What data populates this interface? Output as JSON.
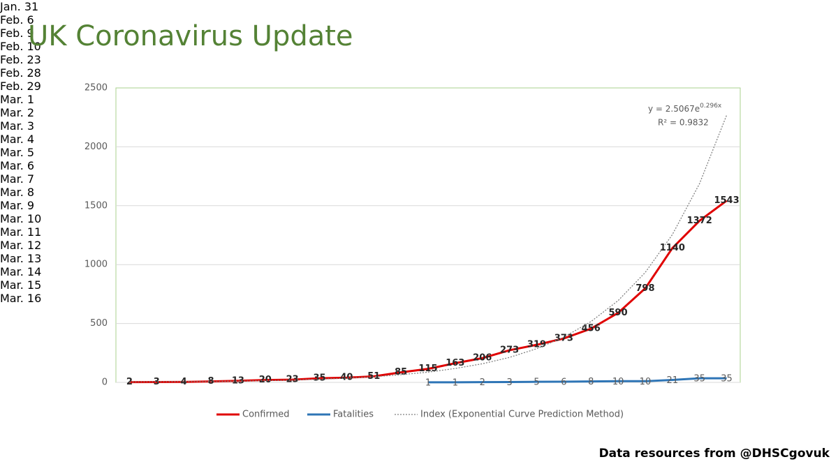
{
  "chart_data": {
    "type": "line",
    "title": "UK Coronavirus Update",
    "source": "Data resources from @DHSCgovuk",
    "equation_base": "y = 2.5067e",
    "equation_exponent": "0.296x",
    "r_squared": "R² = 0.9832",
    "categories": [
      "Jan. 31",
      "Feb. 6",
      "Feb. 9",
      "Feb. 10",
      "Feb. 23",
      "Feb. 28",
      "Feb. 29",
      "Mar. 1",
      "Mar. 2",
      "Mar. 3",
      "Mar. 4",
      "Mar. 5",
      "Mar. 6",
      "Mar. 7",
      "Mar. 8",
      "Mar. 9",
      "Mar. 10",
      "Mar. 11",
      "Mar. 12",
      "Mar. 13",
      "Mar. 14",
      "Mar. 15",
      "Mar. 16"
    ],
    "series": [
      {
        "name": "Confirmed",
        "color": "#e00000",
        "line_style": "solid",
        "data_labels": true,
        "values": [
          2,
          3,
          4,
          8,
          13,
          20,
          23,
          35,
          40,
          51,
          85,
          115,
          163,
          206,
          273,
          319,
          373,
          456,
          590,
          798,
          1140,
          1372,
          1543
        ]
      },
      {
        "name": "Fatalities",
        "color": "#2e75b6",
        "line_style": "solid",
        "data_labels": true,
        "values": [
          null,
          null,
          null,
          null,
          null,
          null,
          null,
          null,
          null,
          null,
          null,
          1,
          1,
          2,
          3,
          5,
          6,
          8,
          10,
          10,
          21,
          35,
          35
        ]
      },
      {
        "name": "Index (Exponential Curve Prediction Method)",
        "color": "#808080",
        "line_style": "dotted",
        "data_labels": false,
        "values": [
          3,
          5,
          6,
          8,
          11,
          15,
          20,
          27,
          36,
          48,
          65,
          87,
          118,
          158,
          212,
          286,
          384,
          516,
          694,
          933,
          1255,
          1687,
          2269
        ]
      }
    ],
    "ylim": [
      0,
      2500
    ],
    "yticks": [
      0,
      500,
      1000,
      1500,
      2000,
      2500
    ],
    "grid": true,
    "legend": "bottom"
  }
}
